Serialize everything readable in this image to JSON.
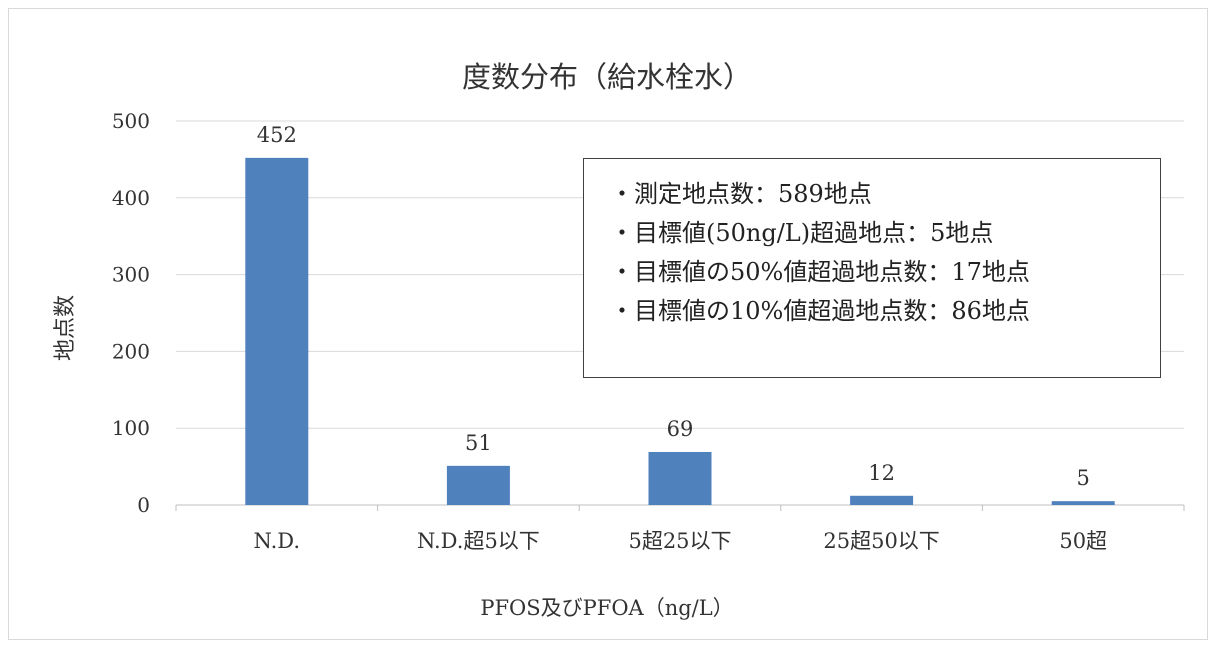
{
  "chart_data": {
    "type": "bar",
    "title": "度数分布（給水栓水）",
    "xlabel": "PFOS及びPFOA（ng/L）",
    "ylabel": "地点数",
    "categories": [
      "N.D.",
      "N.D.超5以下",
      "5超25以下",
      "25超50以下",
      "50超"
    ],
    "values": [
      452,
      51,
      69,
      12,
      5
    ],
    "ylim": [
      0,
      500
    ],
    "yticks": [
      0,
      100,
      200,
      300,
      400,
      500
    ],
    "grid": true,
    "bar_color": "#4f81bd",
    "annotations": [
      "・測定地点数：589地点",
      "・目標値(50ng/L)超過地点：5地点",
      "・目標値の50%値超過地点数：17地点",
      "・目標値の10%値超過地点数：86地点"
    ]
  }
}
